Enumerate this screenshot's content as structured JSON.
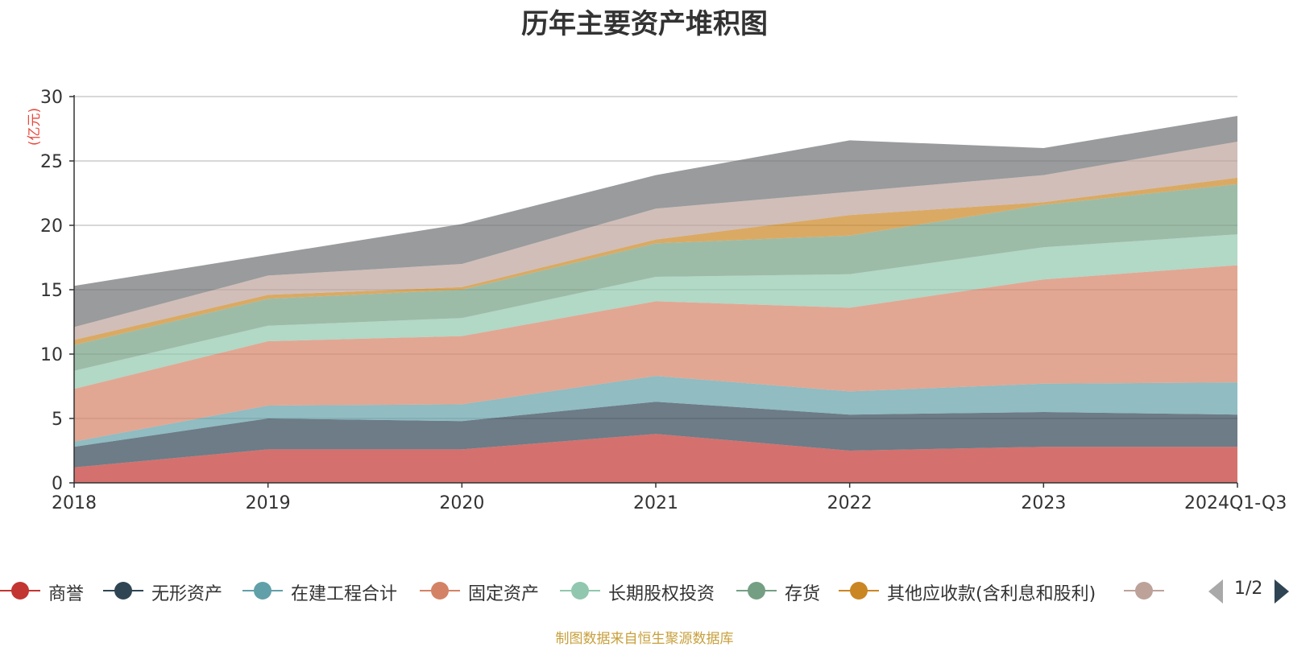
{
  "chart_data": {
    "type": "area",
    "stacked": true,
    "title": "历年主要资产堆积图",
    "ylabel": "(亿元)",
    "xlabel": "",
    "categories": [
      "2018",
      "2019",
      "2020",
      "2021",
      "2022",
      "2023",
      "2024Q1-Q3"
    ],
    "ylim": [
      0,
      30
    ],
    "yticks": [
      0,
      5,
      10,
      15,
      20,
      25,
      30
    ],
    "grid": true,
    "series": [
      {
        "name": "商誉",
        "color": "#c23531",
        "values": [
          1.2,
          2.6,
          2.6,
          3.8,
          2.5,
          2.8,
          2.8
        ]
      },
      {
        "name": "无形资产",
        "color": "#2f4554",
        "values": [
          1.6,
          2.4,
          2.2,
          2.5,
          2.8,
          2.7,
          2.5
        ]
      },
      {
        "name": "在建工程合计",
        "color": "#61a0a8",
        "values": [
          0.4,
          1.0,
          1.3,
          2.0,
          1.8,
          2.2,
          2.5
        ]
      },
      {
        "name": "固定资产",
        "color": "#d48265",
        "values": [
          4.1,
          5.0,
          5.3,
          5.8,
          6.5,
          8.1,
          9.1
        ]
      },
      {
        "name": "长期股权投资",
        "color": "#91c7ae",
        "values": [
          1.4,
          1.2,
          1.4,
          1.9,
          2.6,
          2.5,
          2.4
        ]
      },
      {
        "name": "存货",
        "color": "#749f83",
        "values": [
          2.0,
          2.1,
          2.2,
          2.6,
          3.0,
          3.3,
          3.9
        ]
      },
      {
        "name": "其他应收款(含利息和股利)",
        "color": "#ca8622",
        "values": [
          0.4,
          0.3,
          0.2,
          0.3,
          1.6,
          0.2,
          0.5
        ]
      },
      {
        "name": "",
        "color": "#bda29a",
        "values": [
          1.0,
          1.5,
          1.8,
          2.4,
          1.8,
          2.1,
          2.8
        ]
      },
      {
        "name": "",
        "color": "#6e7074",
        "values": [
          3.2,
          1.6,
          3.1,
          2.6,
          4.0,
          2.1,
          2.0
        ]
      }
    ]
  },
  "legend": {
    "items": [
      {
        "label": "商誉",
        "color": "#c23531"
      },
      {
        "label": "无形资产",
        "color": "#2f4554"
      },
      {
        "label": "在建工程合计",
        "color": "#61a0a8"
      },
      {
        "label": "固定资产",
        "color": "#d48265"
      },
      {
        "label": "长期股权投资",
        "color": "#91c7ae"
      },
      {
        "label": "存货",
        "color": "#749f83"
      },
      {
        "label": "其他应收款(含利息和股利)",
        "color": "#ca8622"
      },
      {
        "label": "",
        "color": "#bda29a"
      }
    ],
    "page": "1/2"
  },
  "footer": "制图数据来自恒生聚源数据库"
}
